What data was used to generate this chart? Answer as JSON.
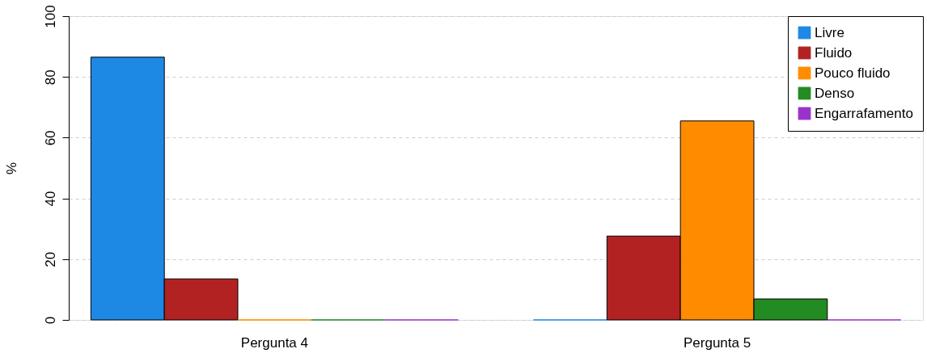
{
  "chart_data": {
    "type": "bar",
    "ylabel": "%",
    "categories": [
      "Pergunta 4",
      "Pergunta 5"
    ],
    "series": [
      {
        "name": "Livre",
        "color": "#1e88e5",
        "values": [
          86.5,
          0
        ]
      },
      {
        "name": "Fluido",
        "color": "#b22222",
        "values": [
          13.5,
          27.6
        ]
      },
      {
        "name": "Pouco fluido",
        "color": "#ff8c00",
        "values": [
          0,
          65.5
        ]
      },
      {
        "name": "Denso",
        "color": "#228b22",
        "values": [
          0,
          6.9
        ]
      },
      {
        "name": "Engarrafamento",
        "color": "#9932cc",
        "values": [
          0,
          0
        ]
      }
    ],
    "ylim": [
      0,
      100
    ],
    "yticks": [
      0,
      20,
      40,
      60,
      80,
      100
    ],
    "grid": "y",
    "legend": "top right"
  }
}
